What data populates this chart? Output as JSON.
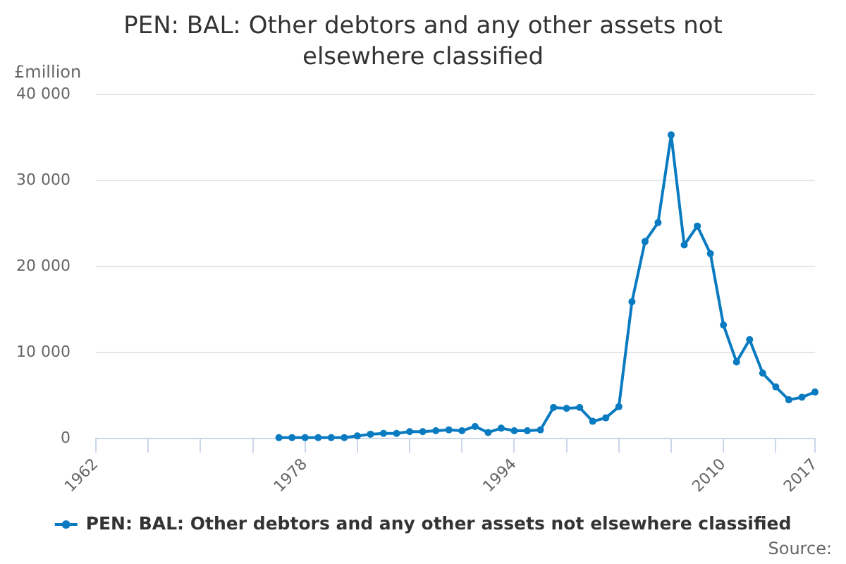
{
  "chart_data": {
    "type": "line",
    "title": "PEN: BAL: Other debtors and any other assets not elsewhere classified",
    "ylabel": "£million",
    "annotations": [
      "Source:"
    ],
    "x": [
      1976,
      1977,
      1978,
      1979,
      1980,
      1981,
      1982,
      1983,
      1984,
      1985,
      1986,
      1987,
      1988,
      1989,
      1990,
      1991,
      1992,
      1993,
      1994,
      1995,
      1996,
      1997,
      1998,
      1999,
      2000,
      2001,
      2002,
      2003,
      2004,
      2005,
      2006,
      2007,
      2008,
      2009,
      2010,
      2011,
      2012,
      2013,
      2014,
      2015,
      2016,
      2017
    ],
    "series": [
      {
        "name": "PEN: BAL: Other debtors and any other assets not elsewhere classified",
        "color": "#0a7bc1",
        "values": [
          100,
          100,
          100,
          100,
          100,
          100,
          300,
          500,
          600,
          600,
          800,
          800,
          900,
          1000,
          900,
          1400,
          700,
          1200,
          900,
          900,
          1000,
          3600,
          3500,
          3600,
          2000,
          2400,
          3700,
          15900,
          22900,
          25100,
          35300,
          22500,
          24700,
          21500,
          13200,
          8900,
          11500,
          7600,
          6000,
          4500,
          4800,
          5400
        ]
      }
    ],
    "xlim": [
      1962,
      2017
    ],
    "xticks": [
      1962,
      {
        "value": 1966,
        "label": null
      },
      {
        "value": 1970,
        "label": null
      },
      {
        "value": 1974,
        "label": null
      },
      1978,
      {
        "value": 1982,
        "label": null
      },
      {
        "value": 1986,
        "label": null
      },
      {
        "value": 1990,
        "label": null
      },
      1994,
      {
        "value": 1998,
        "label": null
      },
      {
        "value": 2002,
        "label": null
      },
      {
        "value": 2006,
        "label": null
      },
      2010,
      {
        "value": 2014,
        "label": null
      },
      2017
    ],
    "ylim": [
      0,
      40000
    ],
    "yticks": [
      0,
      {
        "value": 10000,
        "label": "10 000"
      },
      {
        "value": 20000,
        "label": "20 000"
      },
      {
        "value": 30000,
        "label": "30 000"
      },
      {
        "value": 40000,
        "label": "40 000"
      }
    ],
    "grid": "y",
    "legend": "bottom",
    "marker": "circle",
    "line_style": "solid"
  }
}
